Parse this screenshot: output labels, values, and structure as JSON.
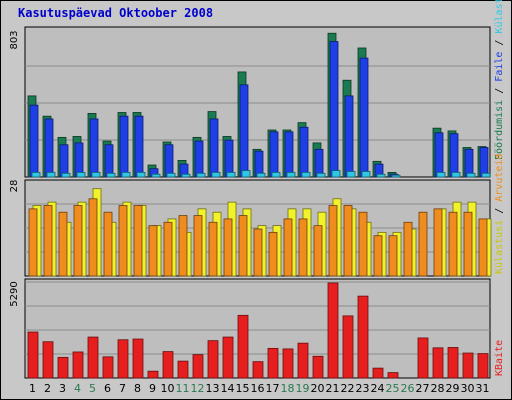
{
  "page": {
    "title": "Kasutuspäevad Oktoober 2008"
  },
  "colors": {
    "background": "#c8c8c8",
    "panel": "#bebebe",
    "title": "#0000cc",
    "visits": "#1a7a50",
    "pages": "#1e3ee6",
    "files": "#2ec8e6",
    "hits": "#f2f22a",
    "downloads": "#f08c1e",
    "kbytes": "#e61e1e",
    "weekend_label": "#2a7a52",
    "weekday_label": "#000000"
  },
  "chart_data": [
    {
      "type": "bar",
      "panel": "top",
      "ymax_label": "803",
      "legend": [
        "Pöördumisi",
        "Faile",
        "Külastusi"
      ],
      "categories": [
        "1",
        "2",
        "3",
        "4",
        "5",
        "6",
        "7",
        "8",
        "9",
        "10",
        "11",
        "12",
        "13",
        "14",
        "15",
        "16",
        "17",
        "18",
        "19",
        "20",
        "21",
        "22",
        "23",
        "24",
        "25",
        "26",
        "27",
        "28",
        "29",
        "30",
        "31"
      ],
      "weekend_days": [
        "4",
        "5",
        "11",
        "12",
        "18",
        "19",
        "25",
        "26"
      ],
      "series": [
        {
          "name": "Pöördumisi",
          "values": [
            440,
            330,
            215,
            220,
            345,
            195,
            350,
            350,
            65,
            190,
            90,
            215,
            355,
            220,
            570,
            150,
            255,
            255,
            295,
            185,
            780,
            525,
            700,
            85,
            25,
            0,
            0,
            265,
            250,
            160,
            165
          ]
        },
        {
          "name": "Faile",
          "values": [
            390,
            315,
            175,
            185,
            315,
            175,
            330,
            330,
            45,
            175,
            70,
            195,
            315,
            200,
            500,
            140,
            245,
            245,
            270,
            150,
            735,
            440,
            645,
            70,
            15,
            0,
            0,
            240,
            235,
            150,
            160
          ]
        },
        {
          "name": "Külastusi",
          "values": [
            25,
            25,
            20,
            25,
            25,
            20,
            25,
            25,
            15,
            20,
            15,
            20,
            25,
            25,
            35,
            20,
            25,
            25,
            25,
            20,
            35,
            30,
            30,
            15,
            10,
            0,
            0,
            25,
            25,
            20,
            20
          ]
        }
      ]
    },
    {
      "type": "bar",
      "panel": "middle",
      "ymax_label": "28",
      "legend": [
        "Külastusi",
        "Arvuteid"
      ],
      "series": [
        {
          "name": "Külastusi",
          "values": [
            21,
            22,
            16,
            22,
            26,
            16,
            22,
            21,
            15,
            17,
            13,
            20,
            19,
            22,
            20,
            15,
            15,
            20,
            20,
            19,
            23,
            20,
            16,
            13,
            13,
            14,
            0,
            20,
            22,
            22,
            17
          ]
        },
        {
          "name": "Arvuteid",
          "values": [
            20,
            21,
            19,
            21,
            23,
            19,
            21,
            21,
            15,
            16,
            18,
            18,
            16,
            17,
            18,
            14,
            13,
            17,
            17,
            15,
            21,
            21,
            19,
            12,
            12,
            16,
            19,
            20,
            19,
            19,
            17
          ]
        }
      ]
    },
    {
      "type": "bar",
      "panel": "bottom",
      "ymax_label": "5290",
      "legend": [
        "KBaite"
      ],
      "series": [
        {
          "name": "KBaite",
          "values": [
            2560,
            2020,
            1150,
            1450,
            2280,
            1180,
            2130,
            2170,
            380,
            1470,
            940,
            1300,
            2080,
            2280,
            3490,
            910,
            1650,
            1620,
            1940,
            1210,
            5290,
            3460,
            4560,
            550,
            300,
            0,
            2230,
            1680,
            1700,
            1390,
            1360
          ]
        }
      ]
    }
  ]
}
